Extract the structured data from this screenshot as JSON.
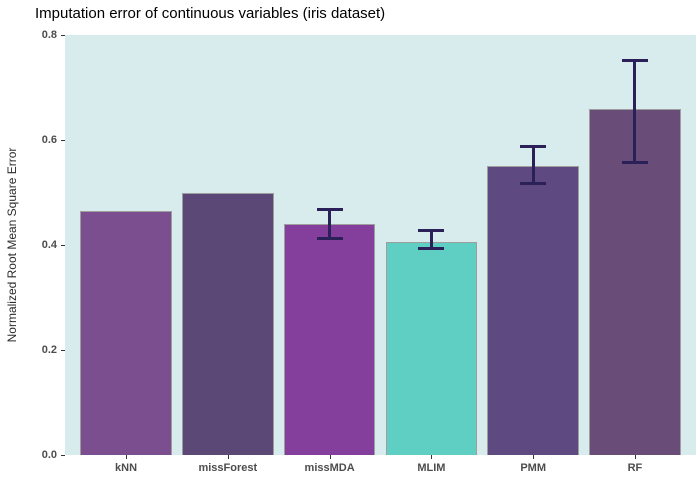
{
  "title": "Imputation error of continuous variables (iris dataset)",
  "y_axis_title": "Normalized Root Mean Square Error",
  "style": {
    "panel_background": "#D8ECEE",
    "bar_border_color": "#9E9E9E",
    "errorbar_color": "#2B2058",
    "axis_text_color": "#4D4D4D",
    "tick_mark_color": "#333333"
  },
  "chart_data": {
    "type": "bar",
    "title": "Imputation error of continuous variables (iris dataset)",
    "xlabel": "",
    "ylabel": "Normalized Root Mean Square Error",
    "categories": [
      "kNN",
      "missForest",
      "missMDA",
      "MLIM",
      "PMM",
      "RF"
    ],
    "values": [
      0.465,
      0.5,
      0.44,
      0.405,
      0.55,
      0.66
    ],
    "error_low": [
      null,
      null,
      0.41,
      0.39,
      0.515,
      0.555
    ],
    "error_high": [
      null,
      null,
      0.47,
      0.43,
      0.59,
      0.755
    ],
    "bar_colors": [
      "#7B4E8F",
      "#5C4876",
      "#833F9B",
      "#5FCEC3",
      "#5E4980",
      "#6A4C79"
    ],
    "ylim": [
      0,
      0.8
    ],
    "yticks": [
      0.0,
      0.2,
      0.4,
      0.6,
      0.8
    ],
    "ytick_labels": [
      "0.0",
      "0.2",
      "0.4",
      "0.6",
      "0.8"
    ],
    "grid": false,
    "legend": "none",
    "errorbars_on": [
      "missMDA",
      "MLIM",
      "PMM",
      "RF"
    ]
  }
}
